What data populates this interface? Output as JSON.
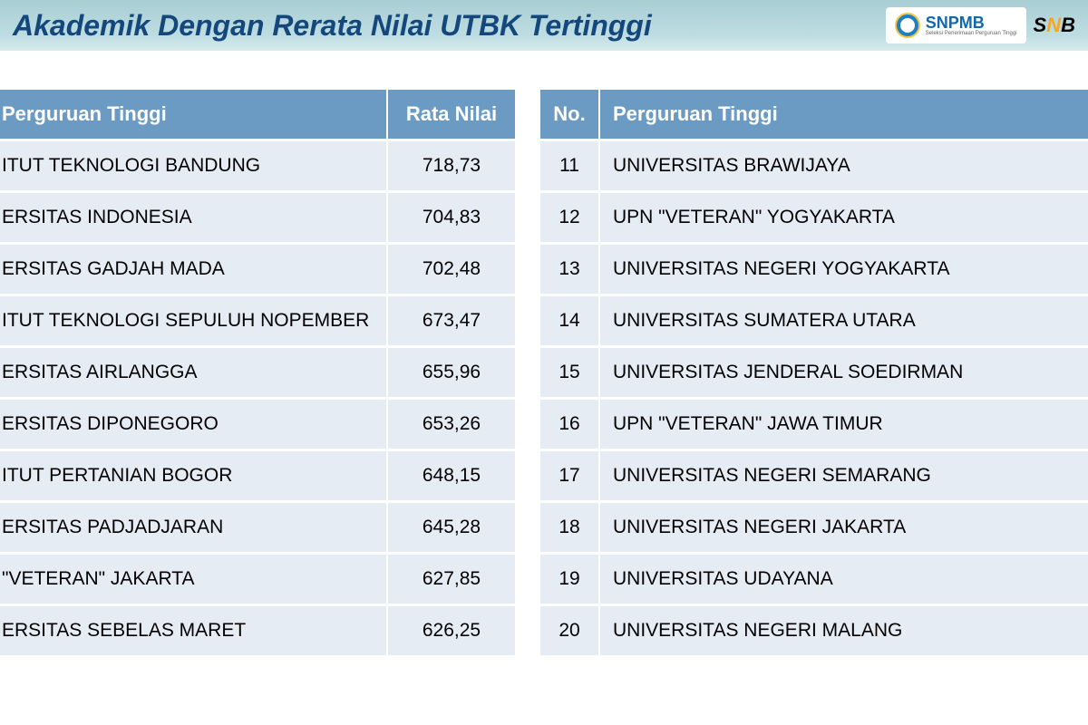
{
  "header": {
    "title": "Akademik Dengan Rerata Nilai UTBK Tertinggi",
    "logo1_text": "SNPMB",
    "logo2_text_s": "S",
    "logo2_text_n": "N",
    "logo2_text_b": "B"
  },
  "table_left": {
    "cols": {
      "pt": "Perguruan Tinggi",
      "rata": "Rata Nilai"
    },
    "rows": [
      {
        "pt": "ITUT TEKNOLOGI BANDUNG",
        "rata": "718,73"
      },
      {
        "pt": "ERSITAS INDONESIA",
        "rata": "704,83"
      },
      {
        "pt": "ERSITAS GADJAH MADA",
        "rata": "702,48"
      },
      {
        "pt": "ITUT TEKNOLOGI SEPULUH NOPEMBER",
        "rata": "673,47"
      },
      {
        "pt": "ERSITAS AIRLANGGA",
        "rata": "655,96"
      },
      {
        "pt": "ERSITAS DIPONEGORO",
        "rata": "653,26"
      },
      {
        "pt": "ITUT PERTANIAN BOGOR",
        "rata": "648,15"
      },
      {
        "pt": "ERSITAS PADJADJARAN",
        "rata": "645,28"
      },
      {
        "pt": "\"VETERAN\" JAKARTA",
        "rata": "627,85"
      },
      {
        "pt": "ERSITAS SEBELAS MARET",
        "rata": "626,25"
      }
    ]
  },
  "table_right": {
    "cols": {
      "no": "No.",
      "pt": "Perguruan Tinggi"
    },
    "rows": [
      {
        "no": "11",
        "pt": "UNIVERSITAS BRAWIJAYA"
      },
      {
        "no": "12",
        "pt": "UPN \"VETERAN\" YOGYAKARTA"
      },
      {
        "no": "13",
        "pt": "UNIVERSITAS NEGERI YOGYAKARTA"
      },
      {
        "no": "14",
        "pt": "UNIVERSITAS SUMATERA UTARA"
      },
      {
        "no": "15",
        "pt": "UNIVERSITAS JENDERAL SOEDIRMAN"
      },
      {
        "no": "16",
        "pt": "UPN \"VETERAN\" JAWA TIMUR"
      },
      {
        "no": "17",
        "pt": "UNIVERSITAS NEGERI SEMARANG"
      },
      {
        "no": "18",
        "pt": "UNIVERSITAS NEGERI JAKARTA"
      },
      {
        "no": "19",
        "pt": "UNIVERSITAS UDAYANA"
      },
      {
        "no": "20",
        "pt": "UNIVERSITAS NEGERI MALANG"
      }
    ]
  },
  "style": {
    "header_bg_from": "#a8ced4",
    "header_bg_to": "#d8ebee",
    "title_color": "#14477c",
    "th_bg": "#6b9bc3",
    "th_color": "#ffffff",
    "td_bg": "#e6ecf4",
    "td_color": "#000000",
    "title_fontsize": 32,
    "th_fontsize": 22,
    "td_fontsize": 21
  }
}
